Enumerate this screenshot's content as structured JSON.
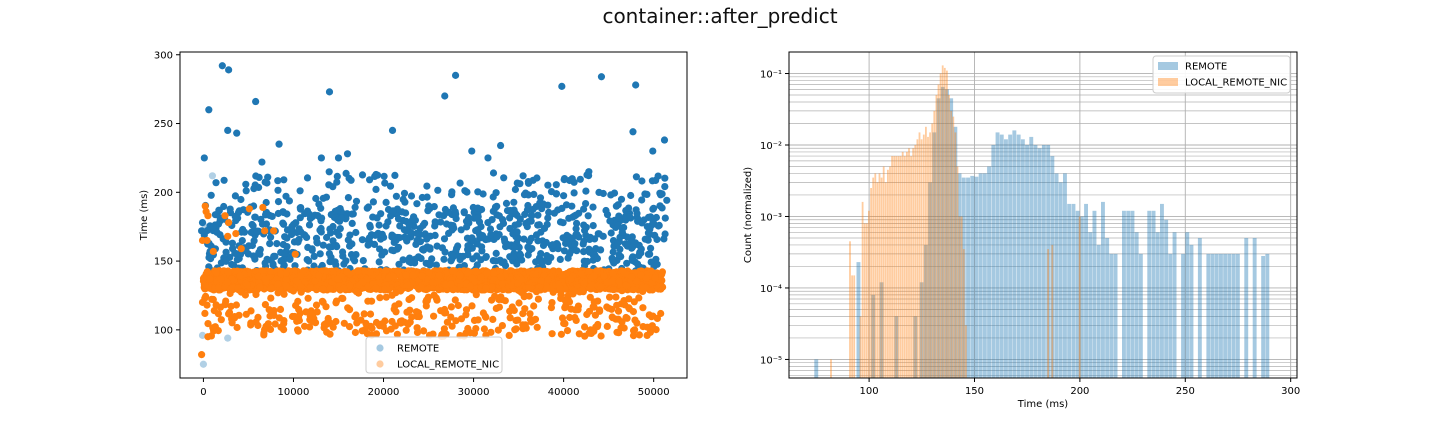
{
  "figure": {
    "title": "container::after_predict"
  },
  "colors": {
    "remote": "#1f77b4",
    "local": "#ff7f0e"
  },
  "chart_data": [
    {
      "type": "scatter",
      "title": "",
      "xlabel": "",
      "ylabel": "Time (ms)",
      "xlim": [
        -2600,
        53700
      ],
      "ylim": [
        65,
        302
      ],
      "xticks": [
        0,
        10000,
        20000,
        30000,
        40000,
        50000
      ],
      "yticks": [
        100,
        150,
        200,
        250,
        300
      ],
      "grid": false,
      "legend_position": "lower-center",
      "series": [
        {
          "name": "REMOTE",
          "color": "#1f77b4",
          "bands": [
            {
              "x_range": [
                0,
                51500
              ],
              "y_range": [
                150,
                190
              ],
              "n": 650
            },
            {
              "x_range": [
                0,
                51500
              ],
              "y_range": [
                190,
                215
              ],
              "n": 130
            },
            {
              "x_range": [
                0,
                51500
              ],
              "y_range": [
                140,
                150
              ],
              "n": 120
            }
          ],
          "points": [
            [
              2100,
              292
            ],
            [
              2800,
              289
            ],
            [
              14000,
              273
            ],
            [
              28000,
              285
            ],
            [
              44200,
              284
            ],
            [
              48000,
              278
            ],
            [
              5800,
              266
            ],
            [
              26800,
              270
            ],
            [
              39800,
              277
            ],
            [
              600,
              260
            ],
            [
              47700,
              244
            ],
            [
              51200,
              238
            ],
            [
              21000,
              245
            ],
            [
              2700,
              245
            ],
            [
              3700,
              243
            ],
            [
              29800,
              230
            ],
            [
              8400,
              235
            ],
            [
              49900,
              230
            ],
            [
              16000,
              228
            ],
            [
              13100,
              225
            ],
            [
              15000,
              225
            ],
            [
              6500,
              222
            ],
            [
              100,
              225
            ],
            [
              42800,
              215
            ],
            [
              40100,
              210
            ],
            [
              35500,
              212
            ],
            [
              31600,
              225
            ],
            [
              33000,
              234
            ],
            [
              1400,
              207
            ],
            [
              18800,
              182
            ],
            [
              22500,
              172
            ],
            [
              44400,
              168
            ],
            [
              300,
              138
            ],
            [
              -100,
              178
            ],
            [
              -200,
              172
            ]
          ]
        },
        {
          "name": "LOCAL_REMOTE_NIC",
          "color": "#ff7f0e",
          "bands": [
            {
              "x_range": [
                0,
                51000
              ],
              "y_range": [
                129,
                143
              ],
              "n": 2400
            },
            {
              "x_range": [
                0,
                51000
              ],
              "y_range": [
                95,
                129
              ],
              "n": 360
            }
          ],
          "points": [
            [
              200,
              190
            ],
            [
              300,
              186
            ],
            [
              500,
              183
            ],
            [
              2400,
              183
            ],
            [
              2800,
              178
            ],
            [
              5100,
              188
            ],
            [
              6600,
              189
            ],
            [
              3600,
              170
            ],
            [
              2700,
              168
            ],
            [
              400,
              165
            ],
            [
              1100,
              157
            ],
            [
              4200,
              159
            ],
            [
              6800,
              172
            ],
            [
              7800,
              172
            ],
            [
              10200,
              155
            ],
            [
              -100,
              120
            ],
            [
              400,
              118
            ],
            [
              -200,
              82
            ],
            [
              500,
              95
            ],
            [
              -100,
              165
            ]
          ]
        }
      ],
      "faded_points": [
        [
          -100,
          96
        ],
        [
          0,
          75
        ],
        [
          2700,
          94
        ],
        [
          1000,
          212
        ],
        [
          200,
          175
        ]
      ]
    },
    {
      "type": "histogram",
      "title": "",
      "xlabel": "Time (ms)",
      "ylabel": "Count (normalized)",
      "xlim": [
        62,
        303
      ],
      "ylim": [
        5.5e-06,
        0.2
      ],
      "yscale": "log",
      "xticks": [
        100,
        150,
        200,
        250,
        300
      ],
      "ytick_labels": [
        "10⁻⁵",
        "10⁻⁴",
        "10⁻³",
        "10⁻²",
        "10⁻¹"
      ],
      "grid": true,
      "legend_position": "top-right",
      "series": [
        {
          "name": "REMOTE",
          "color": "#1f77b4",
          "alpha": 0.4,
          "bins": [
            [
              75,
              1e-05
            ],
            [
              95,
              0.00023
            ],
            [
              102,
              8e-05
            ],
            [
              106,
              0.00012
            ],
            [
              113,
              4e-05
            ],
            [
              122,
              4e-05
            ],
            [
              125,
              0.00012
            ],
            [
              127,
              0.0004
            ],
            [
              129,
              0.003
            ],
            [
              131,
              0.015
            ],
            [
              133,
              0.045
            ],
            [
              135,
              0.065
            ],
            [
              137,
              0.06
            ],
            [
              139,
              0.045
            ],
            [
              141,
              0.018
            ],
            [
              143,
              0.004
            ],
            [
              145,
              0.0035
            ],
            [
              147,
              0.0035
            ],
            [
              149,
              0.0037
            ],
            [
              151,
              0.0036
            ],
            [
              153,
              0.004
            ],
            [
              155,
              0.004
            ],
            [
              157,
              0.005
            ],
            [
              159,
              0.01
            ],
            [
              161,
              0.015
            ],
            [
              163,
              0.014
            ],
            [
              165,
              0.012
            ],
            [
              167,
              0.014
            ],
            [
              169,
              0.016
            ],
            [
              171,
              0.014
            ],
            [
              173,
              0.012
            ],
            [
              175,
              0.01
            ],
            [
              177,
              0.013
            ],
            [
              179,
              0.01
            ],
            [
              181,
              0.009
            ],
            [
              183,
              0.01
            ],
            [
              185,
              0.01
            ],
            [
              187,
              0.007
            ],
            [
              189,
              0.004
            ],
            [
              191,
              0.003
            ],
            [
              193,
              0.004
            ],
            [
              195,
              0.0015
            ],
            [
              197,
              0.0015
            ],
            [
              199,
              0.0012
            ],
            [
              201,
              0.001
            ],
            [
              203,
              0.0015
            ],
            [
              205,
              0.0006
            ],
            [
              207,
              0.0012
            ],
            [
              209,
              0.0004
            ],
            [
              211,
              0.0016
            ],
            [
              213,
              0.0005
            ],
            [
              215,
              0.0003
            ],
            [
              217,
              0.0003
            ],
            [
              221,
              0.0012
            ],
            [
              223,
              0.0012
            ],
            [
              225,
              0.0012
            ],
            [
              227,
              0.0006
            ],
            [
              229,
              0.0003
            ],
            [
              233,
              0.0012
            ],
            [
              235,
              0.0012
            ],
            [
              237,
              0.0006
            ],
            [
              239,
              0.0015
            ],
            [
              241,
              0.0009
            ],
            [
              243,
              0.0003
            ],
            [
              245,
              0.0006
            ],
            [
              249,
              0.0003
            ],
            [
              251,
              0.0006
            ],
            [
              253,
              0.0004
            ],
            [
              257,
              0.0005
            ],
            [
              261,
              0.0003
            ],
            [
              263,
              0.0003
            ],
            [
              265,
              0.0003
            ],
            [
              267,
              0.0003
            ],
            [
              269,
              0.0003
            ],
            [
              271,
              0.0003
            ],
            [
              273,
              0.0003
            ],
            [
              275,
              0.0003
            ],
            [
              279,
              0.0005
            ],
            [
              283,
              0.0005
            ],
            [
              287,
              0.00028
            ],
            [
              289,
              0.0003
            ]
          ]
        },
        {
          "name": "LOCAL_REMOTE_NIC",
          "color": "#ff7f0e",
          "alpha": 0.4,
          "bins": [
            [
              82,
              1e-05
            ],
            [
              91,
              0.00045
            ],
            [
              92,
              0.00015
            ],
            [
              93,
              0.00015
            ],
            [
              96,
              4e-05
            ],
            [
              97,
              0.0016
            ],
            [
              98,
              0.0008
            ],
            [
              99,
              0.0008
            ],
            [
              100,
              0.0012
            ],
            [
              101,
              0.0025
            ],
            [
              102,
              0.0035
            ],
            [
              103,
              0.004
            ],
            [
              104,
              0.003
            ],
            [
              105,
              0.004
            ],
            [
              106,
              0.0035
            ],
            [
              107,
              0.005
            ],
            [
              108,
              0.003
            ],
            [
              109,
              0.0045
            ],
            [
              110,
              0.005
            ],
            [
              111,
              0.007
            ],
            [
              112,
              0.007
            ],
            [
              113,
              0.007
            ],
            [
              114,
              0.007
            ],
            [
              115,
              0.007
            ],
            [
              116,
              0.008
            ],
            [
              117,
              0.007
            ],
            [
              118,
              0.008
            ],
            [
              119,
              0.009
            ],
            [
              120,
              0.007
            ],
            [
              121,
              0.009
            ],
            [
              122,
              0.01
            ],
            [
              123,
              0.012
            ],
            [
              124,
              0.015
            ],
            [
              125,
              0.012
            ],
            [
              126,
              0.014
            ],
            [
              127,
              0.018
            ],
            [
              128,
              0.013
            ],
            [
              129,
              0.015
            ],
            [
              130,
              0.02
            ],
            [
              131,
              0.03
            ],
            [
              132,
              0.05
            ],
            [
              133,
              0.07
            ],
            [
              134,
              0.1
            ],
            [
              135,
              0.13
            ],
            [
              136,
              0.12
            ],
            [
              137,
              0.11
            ],
            [
              138,
              0.05
            ],
            [
              139,
              0.03
            ],
            [
              140,
              0.025
            ],
            [
              141,
              0.015
            ],
            [
              142,
              0.005
            ],
            [
              143,
              0.001
            ],
            [
              144,
              0.001
            ],
            [
              145,
              0.00035
            ],
            [
              146,
              3e-05
            ],
            [
              185,
              0.00035
            ],
            [
              187,
              0.0004
            ],
            [
              200,
              0.001
            ]
          ]
        }
      ]
    }
  ]
}
